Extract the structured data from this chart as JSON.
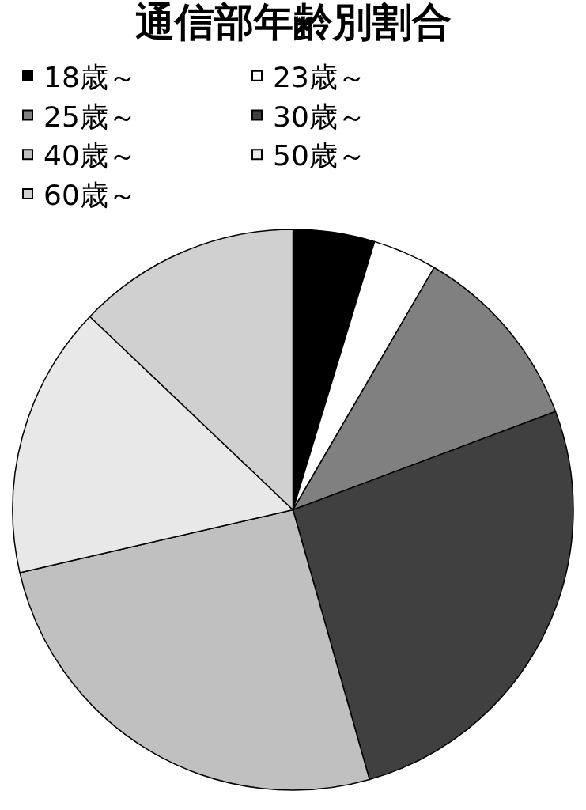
{
  "chart_data": {
    "type": "pie",
    "title": "通信部年齢別割合",
    "categories": [
      "18歳～",
      "23歳～",
      "25歳～",
      "30歳～",
      "40歳～",
      "50歳～",
      "60歳～"
    ],
    "values": [
      4.7,
      3.7,
      10.9,
      26.3,
      25.8,
      15.7,
      12.9
    ],
    "colors": [
      "#000000",
      "#ffffff",
      "#808080",
      "#404040",
      "#c0c0c0",
      "#e8e8e8",
      "#d0d0d0"
    ],
    "legend": "top"
  }
}
